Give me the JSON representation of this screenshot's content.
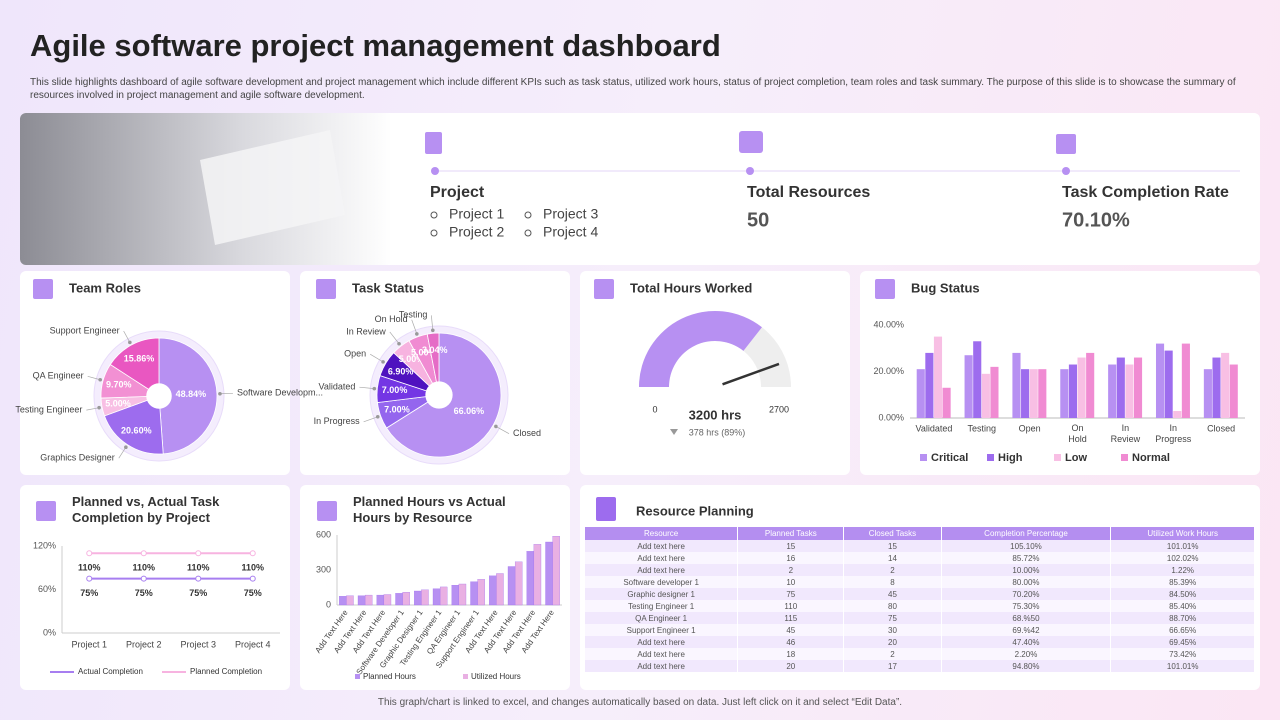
{
  "title": "Agile software project management dashboard",
  "description": "This slide highlights dashboard of agile software development and project management which include different KPIs such as task status, utilized work hours, status of project completion, team roles and task summary. The purpose of this slide is to showcase the summary of resources involved in project management and agile software development.",
  "kpis": {
    "project": {
      "label": "Project",
      "items": [
        "Project 1",
        "Project 2",
        "Project 3",
        "Project 4"
      ]
    },
    "resources": {
      "label": "Total Resources",
      "value": 50
    },
    "completion": {
      "label": "Task Completion Rate",
      "value": 70.1,
      "value_label": "70.10%"
    }
  },
  "chart_data": [
    {
      "type": "pie",
      "title": "Team Roles",
      "categories": [
        "Software Developm...",
        "Graphics Designer",
        "Testing Engineer",
        "QA Engineer",
        "Support Engineer"
      ],
      "values": [
        48.84,
        20.6,
        5.0,
        9.7,
        15.86
      ],
      "value_labels": [
        "48.84%",
        "20.60%",
        "5.00%",
        "9.70%",
        "15.86%"
      ],
      "colors": [
        "#b790f2",
        "#9d6cee",
        "#f8bfe4",
        "#f290d3",
        "#e957c1"
      ]
    },
    {
      "type": "pie",
      "title": "Task Status",
      "categories": [
        "Closed",
        "In Progress",
        "Validated",
        "Open",
        "In Review",
        "On Hold",
        "Testing"
      ],
      "values": [
        66.06,
        7.0,
        7.0,
        6.9,
        5.0,
        5.0,
        3.04
      ],
      "value_labels": [
        "66.06%",
        "7.00%",
        "7.00%",
        "6.90%",
        "5.00%",
        "5.00%",
        "3.04%"
      ],
      "colors": [
        "#b790f2",
        "#9466ee",
        "#7436e4",
        "#4f12bf",
        "#f7b3e0",
        "#f08bd2",
        "#e56cc6"
      ]
    },
    {
      "type": "gauge",
      "title": "Total Hours Worked",
      "value": 3200,
      "value_label": "3200 hrs",
      "xticks": [
        0,
        2700
      ],
      "delta": 89,
      "delta_label": "378 hrs (89%)",
      "color": "#b790f2"
    },
    {
      "type": "bar",
      "title": "Bug Status",
      "categories": [
        "Validated",
        "Testing",
        "Open",
        "On Hold",
        "In Review",
        "In Progress",
        "Closed"
      ],
      "series": [
        {
          "name": "Critical",
          "color": "#b790f2",
          "values": [
            21,
            27,
            28,
            21,
            23,
            32,
            21
          ]
        },
        {
          "name": "High",
          "color": "#9d6cee",
          "values": [
            28,
            33,
            21,
            23,
            26,
            29,
            26
          ]
        },
        {
          "name": "Low",
          "color": "#f8bfe4",
          "values": [
            35,
            19,
            21,
            26,
            23,
            3,
            28
          ]
        },
        {
          "name": "Normal",
          "color": "#f08bd2",
          "values": [
            13,
            22,
            21,
            28,
            26,
            32,
            23
          ]
        }
      ],
      "ylim": [
        0,
        40
      ],
      "yticks": [
        {
          "value": 0,
          "label": "0.00%"
        },
        {
          "value": 20,
          "label": "20.00%"
        },
        {
          "value": 40,
          "label": "40.00%"
        }
      ]
    },
    {
      "type": "line",
      "title": "Planned vs, Actual Task Completion by Project",
      "categories": [
        "Project 1",
        "Project 2",
        "Project 3",
        "Project 4"
      ],
      "series": [
        {
          "name": "Actual Completion",
          "color": "#a77ef0",
          "values": [
            75,
            75,
            75,
            75
          ],
          "value_labels": [
            "75%",
            "75%",
            "75%",
            "75%"
          ]
        },
        {
          "name": "Planned Completion",
          "color": "#f7b3e0",
          "values": [
            110,
            110,
            110,
            110
          ],
          "value_labels": [
            "110%",
            "110%",
            "110%",
            "110%"
          ]
        }
      ],
      "ylim": [
        0,
        120
      ],
      "yticks": [
        {
          "value": 0,
          "label": "0%"
        },
        {
          "value": 60,
          "label": "60%"
        },
        {
          "value": 120,
          "label": "120%"
        }
      ]
    },
    {
      "type": "bar",
      "title": "Planned Hours vs Actual Hours by Resource",
      "categories": [
        "Add Text Here",
        "Add Text Here",
        "Add Text Here",
        "Software Developer 1",
        "Graphic Designer 1",
        "Testing Engineer 1",
        "QA Engineer 1",
        "Support Engineer 1",
        "Add Text Here",
        "Add Text Here",
        "Add Text Here",
        "Add Text Here"
      ],
      "series": [
        {
          "name": "Planned Hours",
          "color": "#b790f2",
          "values": [
            75,
            80,
            85,
            100,
            120,
            140,
            170,
            200,
            250,
            330,
            460,
            540
          ]
        },
        {
          "name": "Utilized Hours",
          "color": "#e9b0e3",
          "values": [
            80,
            85,
            90,
            110,
            130,
            155,
            180,
            220,
            270,
            370,
            520,
            590
          ]
        }
      ],
      "ylim": [
        0,
        600
      ],
      "yticks": [
        0,
        300,
        600
      ]
    }
  ],
  "table": {
    "title": "Resource Planning",
    "columns": [
      "Resource",
      "Planned Tasks",
      "Closed Tasks",
      "Completion Percentage",
      "Utilized Work Hours"
    ],
    "rows": [
      [
        "Add text here",
        15,
        15,
        "105.10%",
        "101.01%"
      ],
      [
        "Add text here",
        16,
        14,
        "85.72%",
        "102.02%"
      ],
      [
        "Add text here",
        2,
        2,
        "10.00%",
        "1.22%"
      ],
      [
        "Software developer 1",
        10,
        8,
        "80.00%",
        "85.39%"
      ],
      [
        "Graphic designer 1",
        75,
        45,
        "70.20%",
        "84.50%"
      ],
      [
        "Testing Engineer 1",
        110,
        80,
        "75.30%",
        "85.40%"
      ],
      [
        "QA Engineer 1",
        115,
        75,
        "68.%50",
        "88.70%"
      ],
      [
        "Support Engineer 1",
        45,
        30,
        "69.%42",
        "66.65%"
      ],
      [
        "Add text here",
        46,
        20,
        "47.40%",
        "69.45%"
      ],
      [
        "Add text here",
        18,
        2,
        "2.20%",
        "73.42%"
      ],
      [
        "Add text here",
        20,
        17,
        "94.80%",
        "101.01%"
      ]
    ]
  },
  "footer": "This graph/chart is linked to excel, and changes automatically based on data. Just left click on it and select “Edit Data”."
}
